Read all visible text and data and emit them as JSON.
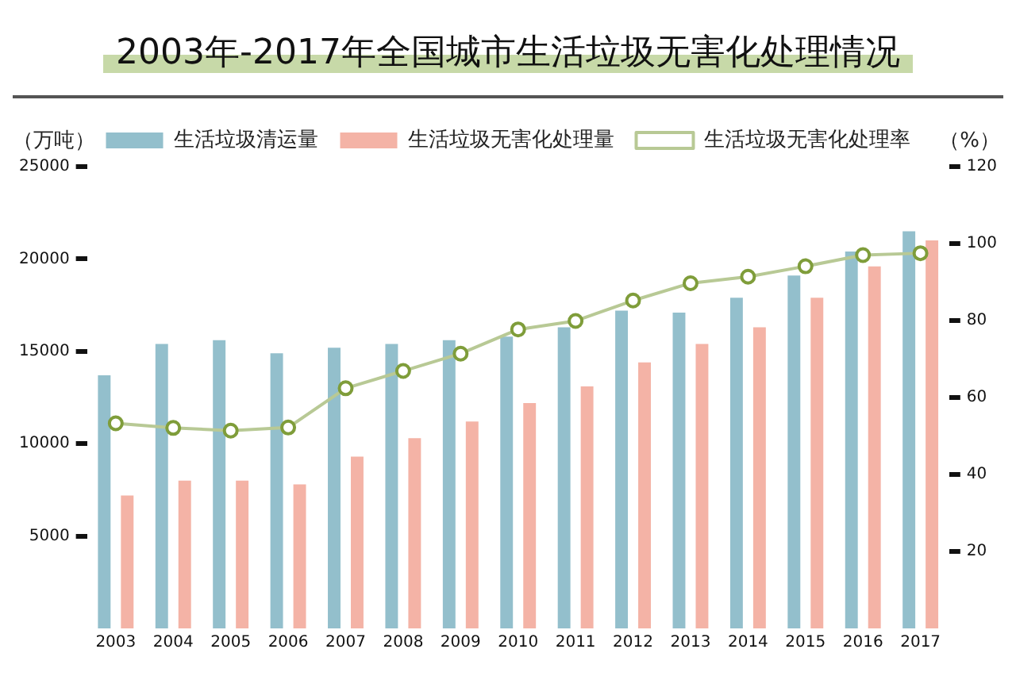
{
  "chart_data": {
    "type": "bar",
    "title": "2003年-2017年全国城市生活垃圾无害化处理情况",
    "ylabel": "（万吨）",
    "y2label": "（%）",
    "categories": [
      "2003",
      "2004",
      "2005",
      "2006",
      "2007",
      "2008",
      "2009",
      "2010",
      "2011",
      "2012",
      "2013",
      "2014",
      "2015",
      "2016",
      "2017"
    ],
    "series": [
      {
        "name": "生活垃圾清运量",
        "color": "#93bfcc",
        "values": [
          13700,
          15400,
          15600,
          14900,
          15200,
          15400,
          15600,
          15800,
          16300,
          17200,
          17100,
          17900,
          19100,
          20400,
          21500
        ]
      },
      {
        "name": "生活垃圾无害化处理量",
        "color": "#f4b3a6",
        "values": [
          7200,
          8000,
          8000,
          7800,
          9300,
          10300,
          11200,
          12200,
          13100,
          14400,
          15400,
          16300,
          17900,
          19600,
          21000
        ]
      },
      {
        "name": "生活垃圾无害化处理率",
        "type": "line",
        "axis": "y2",
        "color": "#b8c995",
        "marker": "circle",
        "values": [
          53.3,
          52.1,
          51.4,
          52.2,
          62.4,
          66.9,
          71.4,
          77.7,
          79.9,
          85.2,
          89.7,
          91.4,
          94.1,
          97,
          97.5
        ]
      }
    ],
    "ylim": [
      0,
      25000
    ],
    "yticks": [
      5000,
      10000,
      15000,
      20000,
      25000
    ],
    "y2lim": [
      0,
      120
    ],
    "y2ticks": [
      20,
      40,
      60,
      80,
      100,
      120
    ],
    "legend": "top",
    "grid": false
  }
}
